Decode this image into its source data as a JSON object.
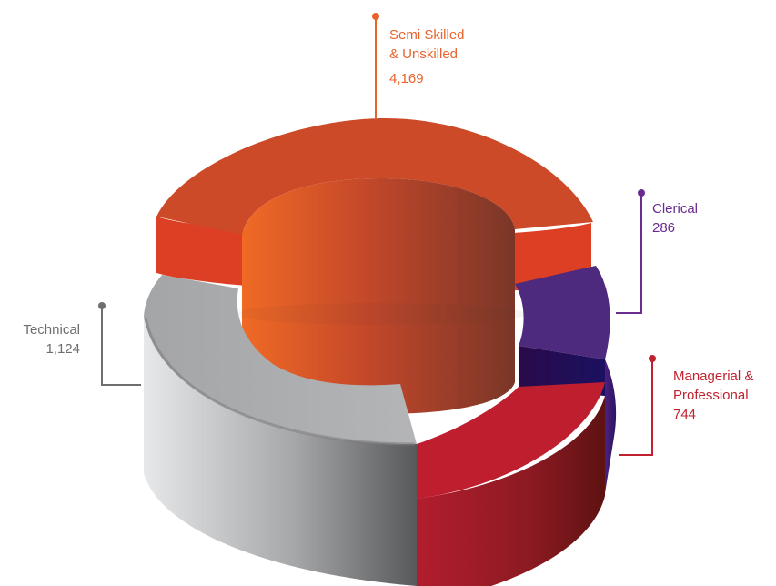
{
  "chart_data": {
    "type": "pie",
    "categories": [
      "Semi Skilled & Unskilled",
      "Clerical",
      "Managerial & Professional",
      "Technical"
    ],
    "values": [
      4169,
      286,
      744,
      1124
    ],
    "labels": [
      {
        "lines": [
          "Semi Skilled",
          "& Unskilled"
        ],
        "value": "4,169",
        "color": "#e8632b"
      },
      {
        "lines": [
          "Clerical"
        ],
        "value": "286",
        "color": "#6a2c8e"
      },
      {
        "lines": [
          "Managerial &",
          "Professional"
        ],
        "value": "744",
        "color": "#c0212f"
      },
      {
        "lines": [
          "Technical"
        ],
        "value": "1,124",
        "color": "#6d6e70"
      }
    ],
    "colors": {
      "semi": "#d24a27",
      "clerical": "#4c2a7f",
      "managerial": "#b81e30",
      "technical": "#a9aaac"
    }
  }
}
